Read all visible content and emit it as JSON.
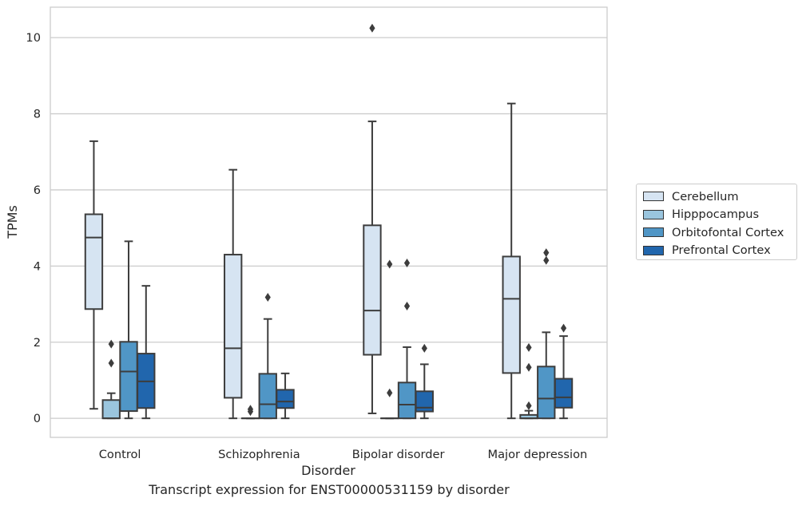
{
  "caption": "Transcript expression for ENST00000531159 by disorder",
  "chart_data": {
    "type": "box",
    "title": "",
    "xlabel": "Disorder",
    "ylabel": "TPMs",
    "ylim": [
      -0.5,
      10.8
    ],
    "yticks": [
      0,
      2,
      4,
      6,
      8,
      10
    ],
    "grid": "horizontal",
    "legend_position": "right",
    "categories": [
      "Control",
      "Schizophrenia",
      "Bipolar disorder",
      "Major depression"
    ],
    "series": [
      {
        "name": "Cerebellum",
        "color": "#d6e4f2",
        "boxes": [
          {
            "whislo": 0.25,
            "q1": 2.87,
            "med": 4.75,
            "q3": 5.36,
            "whishi": 7.28,
            "fliers": []
          },
          {
            "whislo": 0.0,
            "q1": 0.54,
            "med": 1.84,
            "q3": 4.3,
            "whishi": 6.53,
            "fliers": []
          },
          {
            "whislo": 0.13,
            "q1": 1.67,
            "med": 2.83,
            "q3": 5.07,
            "whishi": 7.8,
            "fliers": [
              10.25
            ]
          },
          {
            "whislo": 0.0,
            "q1": 1.19,
            "med": 3.14,
            "q3": 4.25,
            "whishi": 8.27,
            "fliers": []
          }
        ]
      },
      {
        "name": "Hipppocampus",
        "color": "#9ac5de",
        "boxes": [
          {
            "whislo": 0.0,
            "q1": 0.0,
            "med": 0.0,
            "q3": 0.48,
            "whishi": 0.66,
            "fliers": [
              1.45,
              1.95
            ]
          },
          {
            "whislo": 0.0,
            "q1": 0.0,
            "med": 0.0,
            "q3": 0.0,
            "whishi": 0.0,
            "fliers": [
              0.18,
              0.24
            ]
          },
          {
            "whislo": 0.0,
            "q1": 0.0,
            "med": 0.0,
            "q3": 0.0,
            "whishi": 0.0,
            "fliers": [
              0.67,
              4.05
            ]
          },
          {
            "whislo": 0.0,
            "q1": 0.0,
            "med": 0.0,
            "q3": 0.09,
            "whishi": 0.2,
            "fliers": [
              0.33,
              1.34,
              1.86
            ]
          }
        ]
      },
      {
        "name": "Orbitofontal Cortex",
        "color": "#5096c6",
        "boxes": [
          {
            "whislo": 0.0,
            "q1": 0.19,
            "med": 1.23,
            "q3": 2.01,
            "whishi": 4.65,
            "fliers": []
          },
          {
            "whislo": 0.0,
            "q1": 0.0,
            "med": 0.37,
            "q3": 1.17,
            "whishi": 2.61,
            "fliers": [
              3.18
            ]
          },
          {
            "whislo": 0.0,
            "q1": 0.0,
            "med": 0.36,
            "q3": 0.94,
            "whishi": 1.87,
            "fliers": [
              2.95,
              4.08
            ]
          },
          {
            "whislo": 0.0,
            "q1": 0.0,
            "med": 0.52,
            "q3": 1.36,
            "whishi": 2.26,
            "fliers": [
              4.15,
              4.35
            ]
          }
        ]
      },
      {
        "name": "Prefrontal Cortex",
        "color": "#2166ad",
        "boxes": [
          {
            "whislo": 0.0,
            "q1": 0.27,
            "med": 0.97,
            "q3": 1.7,
            "whishi": 3.48,
            "fliers": []
          },
          {
            "whislo": 0.0,
            "q1": 0.27,
            "med": 0.44,
            "q3": 0.75,
            "whishi": 1.18,
            "fliers": []
          },
          {
            "whislo": 0.0,
            "q1": 0.18,
            "med": 0.28,
            "q3": 0.71,
            "whishi": 1.42,
            "fliers": [
              1.84
            ]
          },
          {
            "whislo": 0.0,
            "q1": 0.28,
            "med": 0.55,
            "q3": 1.04,
            "whishi": 2.16,
            "fliers": [
              2.37
            ]
          }
        ]
      }
    ]
  }
}
